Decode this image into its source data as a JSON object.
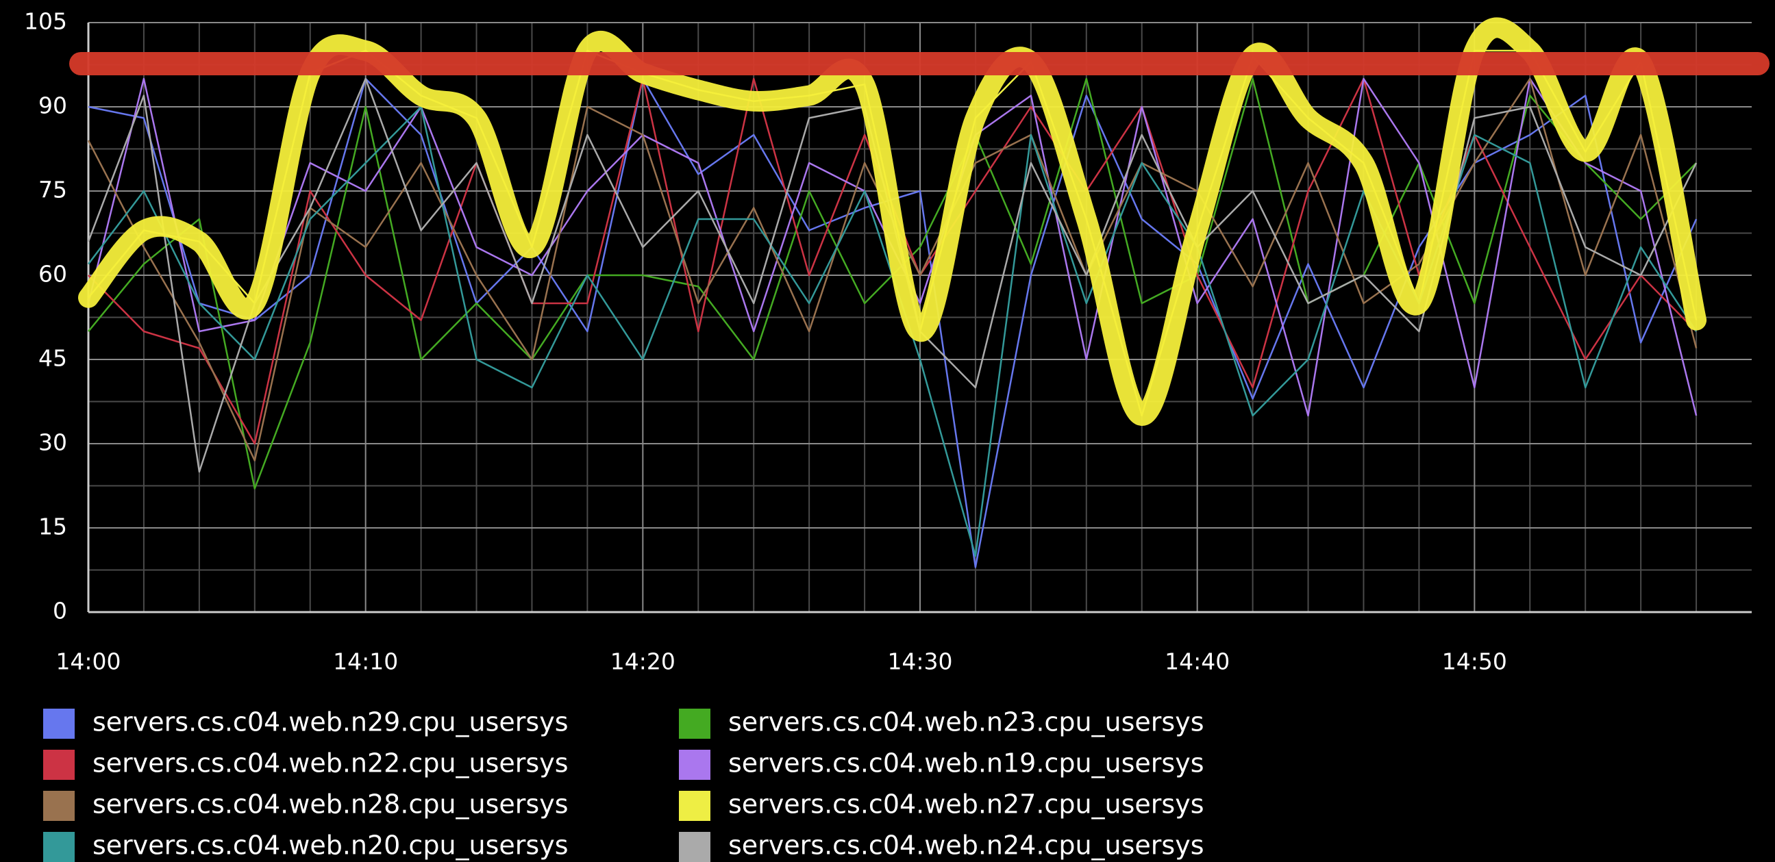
{
  "chart_data": {
    "type": "line",
    "x": [
      0,
      2,
      4,
      6,
      8,
      10,
      12,
      14,
      16,
      18,
      20,
      22,
      24,
      26,
      28,
      30,
      32,
      34,
      36,
      38,
      40,
      42,
      44,
      46,
      48,
      50,
      52,
      54,
      56,
      58
    ],
    "xlim": [
      0,
      60
    ],
    "xticks": [
      {
        "value": 0,
        "label": "14:00"
      },
      {
        "value": 10,
        "label": "14:10"
      },
      {
        "value": 20,
        "label": "14:20"
      },
      {
        "value": 30,
        "label": "14:30"
      },
      {
        "value": 40,
        "label": "14:40"
      },
      {
        "value": 50,
        "label": "14:50"
      }
    ],
    "xminorticks": [
      2,
      4,
      6,
      8,
      12,
      14,
      16,
      18,
      22,
      24,
      26,
      28,
      32,
      34,
      36,
      38,
      42,
      44,
      46,
      48,
      52,
      54,
      56,
      58
    ],
    "ylim": [
      0,
      105
    ],
    "yticks": [
      0,
      15,
      30,
      45,
      60,
      75,
      90,
      105
    ],
    "yminorticks": [
      7.5,
      22.5,
      37.5,
      52.5,
      67.5,
      82.5,
      97.5
    ],
    "grid": true,
    "series": [
      {
        "name": "servers.cs.c04.web.n29.cpu_usersys",
        "color": "#6677ee",
        "values": [
          90,
          88,
          55,
          52,
          60,
          95,
          85,
          55,
          65,
          50,
          95,
          78,
          85,
          68,
          72,
          75,
          8,
          60,
          92,
          70,
          62,
          38,
          62,
          40,
          65,
          80,
          85,
          92,
          48,
          70
        ]
      },
      {
        "name": "servers.cs.c04.web.n23.cpu_usersys",
        "color": "#44aa22",
        "values": [
          50,
          62,
          70,
          22,
          48,
          90,
          45,
          55,
          45,
          60,
          60,
          58,
          45,
          75,
          55,
          65,
          85,
          62,
          95,
          55,
          60,
          95,
          55,
          60,
          80,
          55,
          92,
          80,
          70,
          80
        ]
      },
      {
        "name": "servers.cs.c04.web.n22.cpu_usersys",
        "color": "#cc3344",
        "values": [
          60,
          50,
          47,
          30,
          75,
          60,
          52,
          80,
          55,
          55,
          95,
          50,
          95,
          60,
          85,
          60,
          75,
          90,
          75,
          90,
          60,
          40,
          75,
          95,
          60,
          85,
          65,
          45,
          60,
          50
        ]
      },
      {
        "name": "servers.cs.c04.web.n19.cpu_usersys",
        "color": "#aa77ee",
        "values": [
          55,
          95,
          50,
          52,
          80,
          75,
          90,
          65,
          60,
          75,
          85,
          80,
          50,
          80,
          75,
          55,
          85,
          92,
          45,
          90,
          55,
          70,
          35,
          95,
          80,
          40,
          95,
          80,
          75,
          35
        ]
      },
      {
        "name": "servers.cs.c04.web.n28.cpu_usersys",
        "color": "#99724f",
        "values": [
          84,
          65,
          48,
          27,
          72,
          65,
          80,
          60,
          45,
          90,
          85,
          55,
          72,
          50,
          80,
          60,
          80,
          85,
          60,
          80,
          75,
          58,
          80,
          55,
          62,
          80,
          95,
          60,
          85,
          47
        ]
      },
      {
        "name": "servers.cs.c04.web.n27.cpu_usersys",
        "color": "#eeee44",
        "values": [
          56,
          68,
          66,
          55,
          96,
          100,
          92,
          88,
          65,
          100,
          96,
          93,
          91,
          92,
          94,
          50,
          88,
          98,
          70,
          35,
          68,
          99,
          88,
          80,
          55,
          100,
          100,
          82,
          98,
          52
        ]
      },
      {
        "name": "servers.cs.c04.web.n20.cpu_usersys",
        "color": "#339999",
        "values": [
          62,
          75,
          55,
          45,
          70,
          80,
          90,
          45,
          40,
          60,
          45,
          70,
          70,
          55,
          75,
          45,
          10,
          85,
          55,
          80,
          65,
          35,
          45,
          75,
          55,
          85,
          80,
          40,
          65,
          50
        ]
      },
      {
        "name": "servers.cs.c04.web.n24.cpu_usersys",
        "color": "#aaaaaa",
        "values": [
          66,
          92,
          25,
          55,
          72,
          95,
          68,
          80,
          55,
          85,
          65,
          75,
          55,
          88,
          90,
          50,
          40,
          80,
          60,
          85,
          65,
          75,
          55,
          60,
          50,
          88,
          90,
          65,
          60,
          80
        ]
      }
    ]
  }
}
